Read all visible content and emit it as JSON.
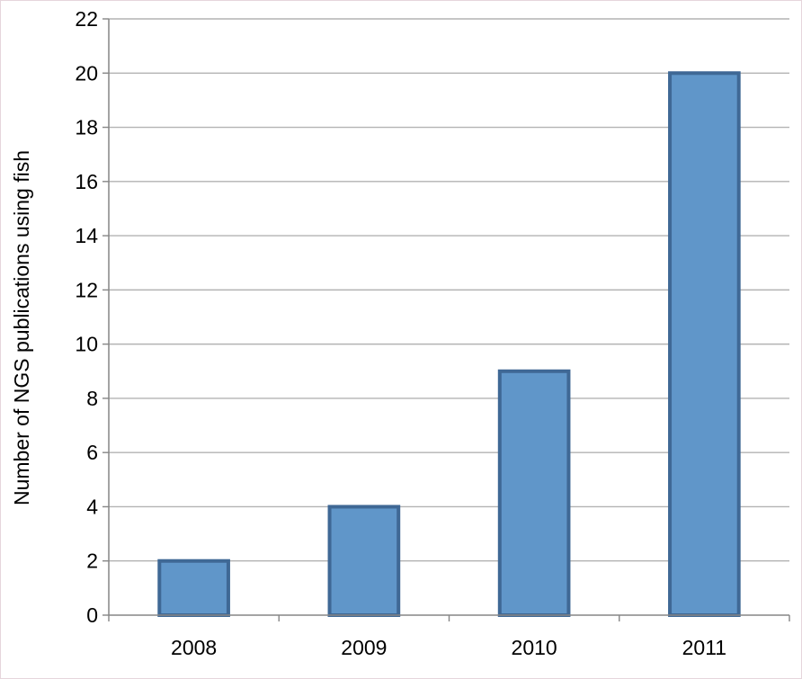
{
  "chart_data": {
    "type": "bar",
    "title": "",
    "xlabel": "",
    "ylabel": "Number of NGS publications using fish",
    "categories": [
      "2008",
      "2009",
      "2010",
      "2011"
    ],
    "values": [
      2,
      4,
      9,
      20
    ],
    "ylim": [
      0,
      22
    ],
    "yticks": [
      0,
      2,
      4,
      6,
      8,
      10,
      12,
      14,
      16,
      18,
      20,
      22
    ],
    "grid": true,
    "legend": "none",
    "colors": {
      "bar_fill": "#6096c9",
      "bar_stroke": "#3f6895",
      "grid": "#b3b3b3",
      "axis": "#868686"
    }
  }
}
